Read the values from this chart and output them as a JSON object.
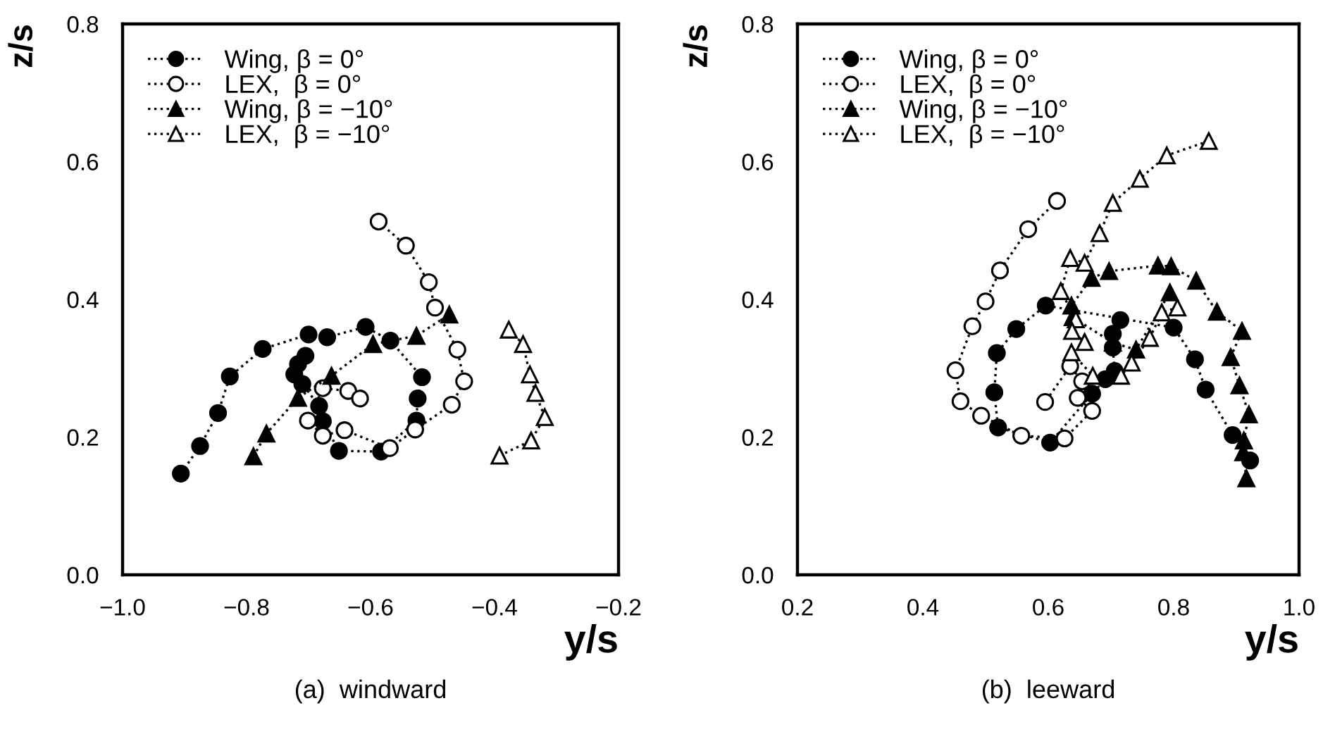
{
  "chart_data": [
    {
      "type": "line",
      "title": "(a)  windward",
      "xlabel": "y/s",
      "ylabel": "z/s",
      "xlim": [
        -1.0,
        -0.2
      ],
      "ylim": [
        0.0,
        0.8
      ],
      "xticks": [
        {
          "value": -1.0,
          "label": "−1.0"
        },
        {
          "value": -0.8,
          "label": "−0.8"
        },
        {
          "value": -0.6,
          "label": "−0.6"
        },
        {
          "value": -0.4,
          "label": "−0.4"
        },
        {
          "value": -0.2,
          "label": "−0.2"
        }
      ],
      "yticks": [
        {
          "value": 0.0,
          "label": "0.0"
        },
        {
          "value": 0.2,
          "label": "0.2"
        },
        {
          "value": 0.4,
          "label": "0.4"
        },
        {
          "value": 0.6,
          "label": "0.6"
        },
        {
          "value": 0.8,
          "label": "0.8"
        }
      ],
      "grid": false,
      "legend": "top left",
      "line_style": "dotted",
      "series": [
        {
          "name": "Wing, β = 0°",
          "color": "#000000",
          "marker": "circle",
          "x": [
            -0.906,
            -0.875,
            -0.846,
            -0.827,
            -0.774,
            -0.7,
            -0.67,
            -0.608,
            -0.568,
            -0.517,
            -0.524,
            -0.526,
            -0.583,
            -0.651,
            -0.677,
            -0.683,
            -0.71,
            -0.723,
            -0.717,
            -0.705
          ],
          "values": [
            0.147,
            0.187,
            0.235,
            0.288,
            0.328,
            0.349,
            0.345,
            0.36,
            0.34,
            0.287,
            0.256,
            0.224,
            0.179,
            0.18,
            0.223,
            0.245,
            0.277,
            0.291,
            0.306,
            0.318
          ]
        },
        {
          "name": "LEX,  β = 0°",
          "color": "#ffffff",
          "marker": "circle",
          "x": [
            -0.587,
            -0.543,
            -0.506,
            -0.496,
            -0.46,
            -0.449,
            -0.469,
            -0.528,
            -0.569,
            -0.642,
            -0.677,
            -0.701,
            -0.677,
            -0.636,
            -0.617
          ],
          "values": [
            0.513,
            0.478,
            0.425,
            0.388,
            0.327,
            0.281,
            0.247,
            0.211,
            0.184,
            0.21,
            0.202,
            0.224,
            0.271,
            0.267,
            0.256
          ]
        },
        {
          "name": "Wing, β = −10°",
          "color": "#000000",
          "marker": "triangle",
          "x": [
            -0.789,
            -0.768,
            -0.717,
            -0.663,
            -0.596,
            -0.526,
            -0.473
          ],
          "values": [
            0.172,
            0.205,
            0.257,
            0.289,
            0.335,
            0.347,
            0.378
          ]
        },
        {
          "name": "LEX,  β = −10°",
          "color": "#ffffff",
          "marker": "triangle",
          "x": [
            -0.392,
            -0.341,
            -0.319,
            -0.334,
            -0.343,
            -0.354,
            -0.377
          ],
          "values": [
            0.173,
            0.195,
            0.229,
            0.264,
            0.291,
            0.335,
            0.356
          ]
        }
      ]
    },
    {
      "type": "line",
      "title": "(b)  leeward",
      "xlabel": "y/s",
      "ylabel": "z/s",
      "xlim": [
        0.2,
        1.0
      ],
      "ylim": [
        0.0,
        0.8
      ],
      "xticks": [
        {
          "value": 0.2,
          "label": "0.2"
        },
        {
          "value": 0.4,
          "label": "0.4"
        },
        {
          "value": 0.6,
          "label": "0.6"
        },
        {
          "value": 0.8,
          "label": "0.8"
        },
        {
          "value": 1.0,
          "label": "1.0"
        }
      ],
      "yticks": [
        {
          "value": 0.0,
          "label": "0.0"
        },
        {
          "value": 0.2,
          "label": "0.2"
        },
        {
          "value": 0.4,
          "label": "0.4"
        },
        {
          "value": 0.6,
          "label": "0.6"
        },
        {
          "value": 0.8,
          "label": "0.8"
        }
      ],
      "grid": false,
      "legend": "top left",
      "line_style": "dotted",
      "series": [
        {
          "name": "Wing, β = 0°",
          "color": "#000000",
          "marker": "circle",
          "x": [
            0.922,
            0.894,
            0.851,
            0.834,
            0.8,
            0.596,
            0.549,
            0.518,
            0.514,
            0.52,
            0.603,
            0.67,
            0.691,
            0.706,
            0.703,
            0.703,
            0.715
          ],
          "values": [
            0.166,
            0.203,
            0.269,
            0.313,
            0.359,
            0.391,
            0.357,
            0.322,
            0.265,
            0.214,
            0.192,
            0.263,
            0.284,
            0.296,
            0.33,
            0.35,
            0.37
          ]
        },
        {
          "name": "LEX,  β = 0°",
          "color": "#ffffff",
          "marker": "circle",
          "x": [
            0.614,
            0.568,
            0.523,
            0.5,
            0.479,
            0.452,
            0.46,
            0.493,
            0.557,
            0.626,
            0.67,
            0.647,
            0.654,
            0.635,
            0.595
          ],
          "values": [
            0.543,
            0.502,
            0.442,
            0.397,
            0.361,
            0.297,
            0.252,
            0.231,
            0.202,
            0.198,
            0.238,
            0.257,
            0.281,
            0.303,
            0.251
          ]
        },
        {
          "name": "Wing, β = −10°",
          "color": "#000000",
          "marker": "triangle",
          "x": [
            0.916,
            0.911,
            0.912,
            0.92,
            0.905,
            0.891,
            0.909,
            0.869,
            0.836,
            0.796,
            0.775,
            0.697,
            0.669,
            0.637,
            0.639,
            0.703,
            0.74,
            0.794
          ],
          "values": [
            0.14,
            0.178,
            0.195,
            0.233,
            0.275,
            0.316,
            0.354,
            0.382,
            0.427,
            0.448,
            0.449,
            0.441,
            0.431,
            0.391,
            0.374,
            0.337,
            0.327,
            0.41
          ]
        },
        {
          "name": "LEX,  β = −10°",
          "color": "#ffffff",
          "marker": "triangle",
          "x": [
            0.856,
            0.789,
            0.746,
            0.703,
            0.682,
            0.658,
            0.635,
            0.62,
            0.644,
            0.638,
            0.658,
            0.637,
            0.671,
            0.716,
            0.733,
            0.762,
            0.781,
            0.806
          ],
          "values": [
            0.63,
            0.609,
            0.575,
            0.54,
            0.496,
            0.453,
            0.46,
            0.412,
            0.371,
            0.354,
            0.338,
            0.323,
            0.289,
            0.289,
            0.308,
            0.344,
            0.381,
            0.388
          ]
        }
      ]
    }
  ]
}
